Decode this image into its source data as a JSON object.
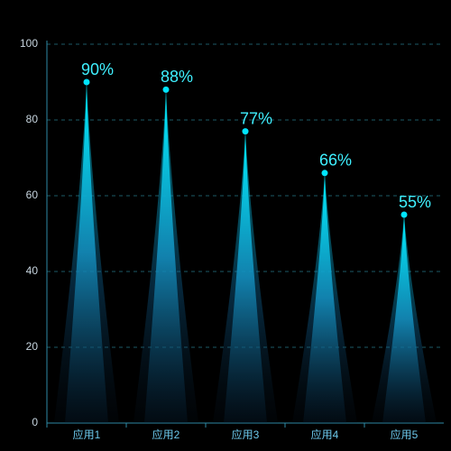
{
  "chart_data": {
    "type": "pictorial-bar",
    "categories": [
      "应用1",
      "应用2",
      "应用3",
      "应用4",
      "应用5"
    ],
    "values": [
      90,
      88,
      77,
      66,
      55
    ],
    "value_labels": [
      "90%",
      "88%",
      "77%",
      "66%",
      "55%"
    ],
    "color": "#00e5ff",
    "ylim": [
      0,
      100
    ],
    "yticks": [
      0,
      20,
      40,
      60,
      80,
      100
    ],
    "grid": true
  }
}
